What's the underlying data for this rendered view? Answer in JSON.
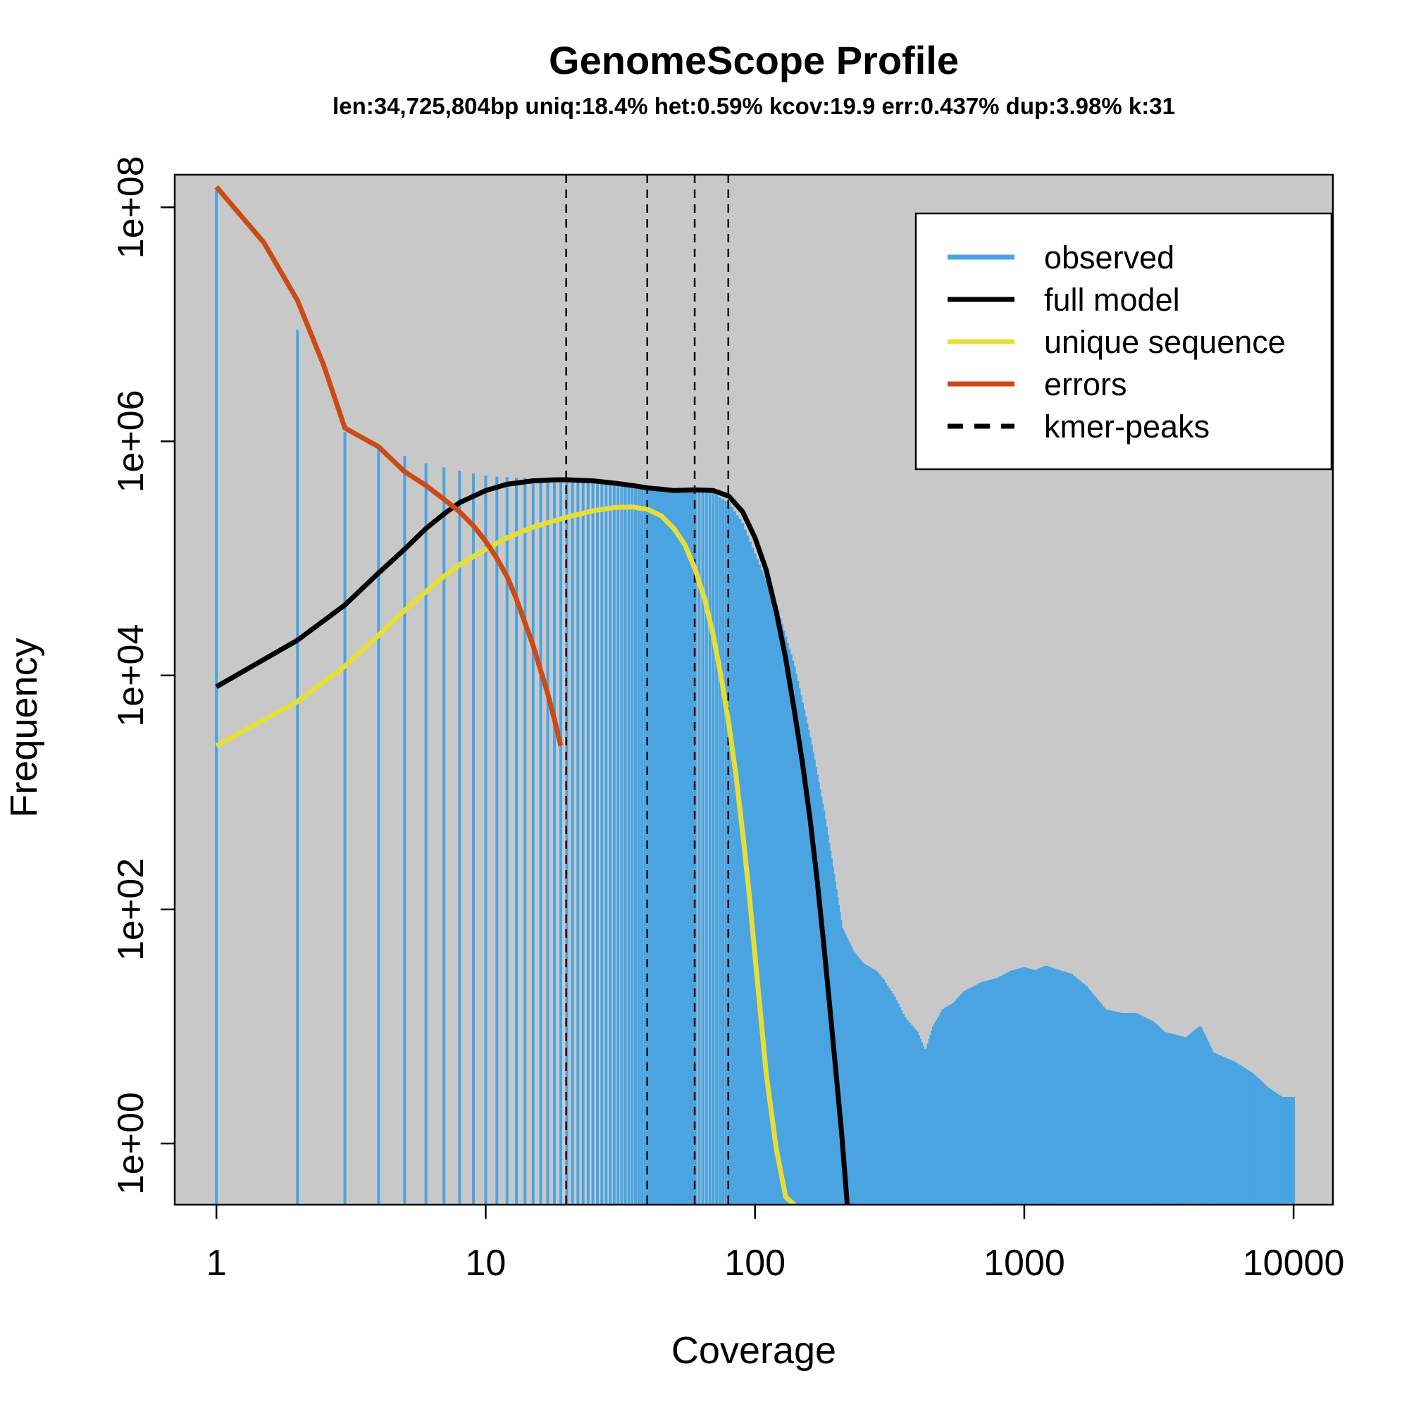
{
  "chart_data": {
    "type": "line",
    "title": "GenomeScope Profile",
    "subtitle": "len:34,725,804bp uniq:18.4%  het:0.59% kcov:19.9 err:0.437%  dup:3.98%  k:31",
    "xlabel": "Coverage",
    "ylabel": "Frequency",
    "x_scale": "log",
    "y_scale": "log",
    "xlim": [
      0.7,
      14000
    ],
    "ylim": [
      0.3,
      190000000
    ],
    "x_ticks": [
      1,
      10,
      100,
      1000,
      10000
    ],
    "x_tick_labels": [
      "1",
      "10",
      "100",
      "1000",
      "10000"
    ],
    "y_ticks": [
      1,
      100,
      10000,
      1000000,
      100000000
    ],
    "y_tick_labels": [
      "1e+00",
      "1e+02",
      "1e+04",
      "1e+06",
      "1e+08"
    ],
    "background": "#c8c8c8",
    "legend_position": "top-right",
    "series": [
      {
        "name": "observed",
        "style": "histogram",
        "color": "#4aa4e2",
        "points": [
          [
            1,
            140000000
          ],
          [
            2,
            9000000
          ],
          [
            3,
            1200000
          ],
          [
            4,
            900000
          ],
          [
            5,
            750000
          ],
          [
            6,
            650000
          ],
          [
            7,
            600000
          ],
          [
            8,
            560000
          ],
          [
            9,
            530000
          ],
          [
            10,
            510000
          ],
          [
            11,
            500000
          ],
          [
            12,
            495000
          ],
          [
            13,
            490000
          ],
          [
            14,
            488000
          ],
          [
            15,
            486000
          ],
          [
            16,
            484000
          ],
          [
            17,
            482000
          ],
          [
            18,
            480000
          ],
          [
            19,
            478000
          ],
          [
            20,
            475000
          ],
          [
            22,
            470000
          ],
          [
            25,
            460000
          ],
          [
            30,
            440000
          ],
          [
            35,
            420000
          ],
          [
            40,
            400000
          ],
          [
            50,
            380000
          ],
          [
            60,
            380000
          ],
          [
            70,
            360000
          ],
          [
            80,
            300000
          ],
          [
            90,
            200000
          ],
          [
            100,
            110000
          ],
          [
            120,
            40000
          ],
          [
            140,
            12000
          ],
          [
            160,
            3000
          ],
          [
            180,
            700
          ],
          [
            200,
            150
          ],
          [
            210,
            70
          ],
          [
            230,
            45
          ],
          [
            250,
            35
          ],
          [
            280,
            30
          ],
          [
            300,
            25
          ],
          [
            330,
            18
          ],
          [
            360,
            12
          ],
          [
            400,
            9
          ],
          [
            430,
            6
          ],
          [
            460,
            10
          ],
          [
            500,
            14
          ],
          [
            550,
            16
          ],
          [
            600,
            20
          ],
          [
            700,
            24
          ],
          [
            800,
            26
          ],
          [
            900,
            30
          ],
          [
            1000,
            32
          ],
          [
            1100,
            30
          ],
          [
            1200,
            33
          ],
          [
            1300,
            31
          ],
          [
            1500,
            28
          ],
          [
            1700,
            22
          ],
          [
            2000,
            14
          ],
          [
            2300,
            13
          ],
          [
            2600,
            13
          ],
          [
            3000,
            11
          ],
          [
            3300,
            9
          ],
          [
            4000,
            8
          ],
          [
            4500,
            10
          ],
          [
            5000,
            6
          ],
          [
            6000,
            5
          ],
          [
            7000,
            4
          ],
          [
            8000,
            3
          ],
          [
            9000,
            2.5
          ],
          [
            10000,
            2.5
          ]
        ]
      },
      {
        "name": "full model",
        "style": "line",
        "color": "#000000",
        "points": [
          [
            1,
            8000
          ],
          [
            2,
            20000
          ],
          [
            3,
            40000
          ],
          [
            4,
            75000
          ],
          [
            5,
            120000
          ],
          [
            6,
            180000
          ],
          [
            7,
            240000
          ],
          [
            8,
            300000
          ],
          [
            10,
            380000
          ],
          [
            12,
            430000
          ],
          [
            15,
            460000
          ],
          [
            18,
            470000
          ],
          [
            20,
            470000
          ],
          [
            25,
            460000
          ],
          [
            30,
            440000
          ],
          [
            35,
            420000
          ],
          [
            40,
            400000
          ],
          [
            45,
            390000
          ],
          [
            50,
            380000
          ],
          [
            60,
            385000
          ],
          [
            70,
            380000
          ],
          [
            80,
            340000
          ],
          [
            90,
            250000
          ],
          [
            100,
            150000
          ],
          [
            110,
            80000
          ],
          [
            120,
            35000
          ],
          [
            130,
            14000
          ],
          [
            140,
            5000
          ],
          [
            150,
            1800
          ],
          [
            160,
            600
          ],
          [
            170,
            180
          ],
          [
            180,
            50
          ],
          [
            190,
            14
          ],
          [
            200,
            4
          ],
          [
            210,
            1.2
          ],
          [
            220,
            0.3
          ]
        ]
      },
      {
        "name": "unique sequence",
        "style": "line",
        "color": "#e6de37",
        "points": [
          [
            1,
            2500
          ],
          [
            2,
            6000
          ],
          [
            3,
            12000
          ],
          [
            4,
            22000
          ],
          [
            5,
            36000
          ],
          [
            6,
            52000
          ],
          [
            7,
            70000
          ],
          [
            8,
            88000
          ],
          [
            10,
            120000
          ],
          [
            12,
            150000
          ],
          [
            15,
            185000
          ],
          [
            18,
            210000
          ],
          [
            20,
            225000
          ],
          [
            25,
            255000
          ],
          [
            30,
            272000
          ],
          [
            35,
            275000
          ],
          [
            40,
            262000
          ],
          [
            45,
            230000
          ],
          [
            50,
            180000
          ],
          [
            55,
            130000
          ],
          [
            60,
            80000
          ],
          [
            65,
            45000
          ],
          [
            70,
            22000
          ],
          [
            75,
            9500
          ],
          [
            80,
            3800
          ],
          [
            85,
            1400
          ],
          [
            90,
            450
          ],
          [
            95,
            140
          ],
          [
            100,
            40
          ],
          [
            110,
            4
          ],
          [
            120,
            0.9
          ],
          [
            130,
            0.35
          ],
          [
            140,
            0.3
          ]
        ]
      },
      {
        "name": "errors",
        "style": "line",
        "color": "#cc4a13",
        "points": [
          [
            1,
            150000000
          ],
          [
            1.5,
            50000000
          ],
          [
            2,
            16000000
          ],
          [
            2.5,
            4500000
          ],
          [
            3,
            1300000
          ],
          [
            4,
            900000
          ],
          [
            5,
            550000
          ],
          [
            6,
            420000
          ],
          [
            7,
            320000
          ],
          [
            8,
            250000
          ],
          [
            9,
            190000
          ],
          [
            10,
            140000
          ],
          [
            11,
            100000
          ],
          [
            12,
            70000
          ],
          [
            13,
            45000
          ],
          [
            14,
            28000
          ],
          [
            15,
            18000
          ],
          [
            16,
            11000
          ],
          [
            17,
            7000
          ],
          [
            18,
            4200
          ],
          [
            19,
            2500
          ]
        ]
      },
      {
        "name": "kmer-peaks",
        "style": "vline",
        "color": "#000000",
        "x": [
          19.9,
          39.8,
          59.7,
          79.6
        ]
      }
    ]
  }
}
